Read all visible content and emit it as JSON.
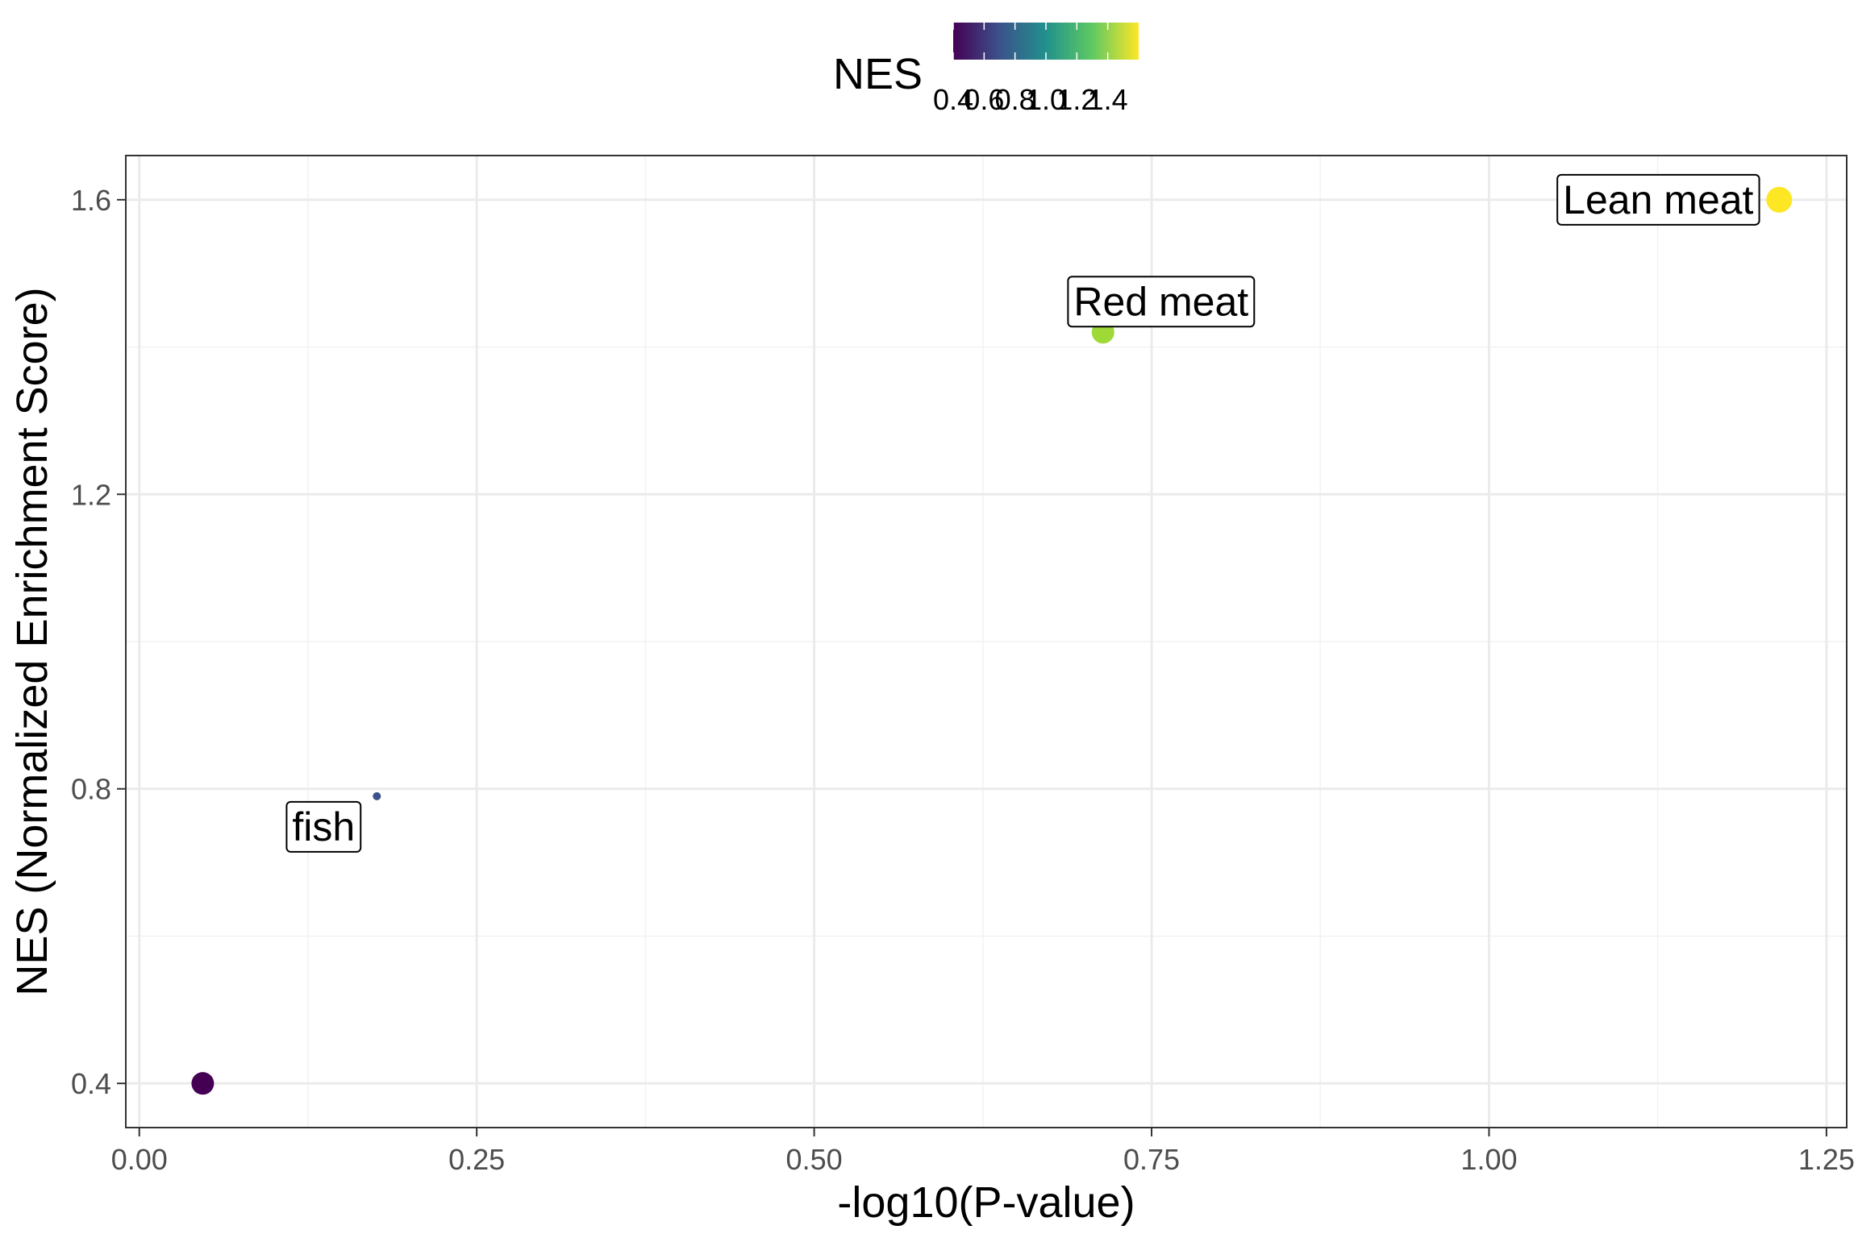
{
  "chart_data": {
    "type": "scatter",
    "xlabel": "-log10(P-value)",
    "ylabel": "NES (Normalized Enrichment Score)",
    "xlim": [
      -0.01,
      1.265
    ],
    "ylim": [
      0.34,
      1.66
    ],
    "x_ticks": [
      0.0,
      0.25,
      0.5,
      0.75,
      1.0,
      1.25
    ],
    "x_tick_labels": [
      "0.00",
      "0.25",
      "0.50",
      "0.75",
      "1.00",
      "1.25"
    ],
    "y_ticks": [
      0.4,
      0.8,
      1.2,
      1.6
    ],
    "y_tick_labels": [
      "0.4",
      "0.8",
      "1.2",
      "1.6"
    ],
    "grid": true,
    "points": [
      {
        "x": 0.047,
        "y": 0.4,
        "color": "#440154",
        "size": 14,
        "label": ""
      },
      {
        "x": 0.176,
        "y": 0.79,
        "color": "#3b528b",
        "size": 5,
        "label": "fish"
      },
      {
        "x": 0.714,
        "y": 1.42,
        "color": "#9fd938",
        "size": 14,
        "label": "Red meat"
      },
      {
        "x": 1.215,
        "y": 1.6,
        "color": "#fde725",
        "size": 16,
        "label": "Lean meat"
      }
    ],
    "legend": {
      "title": "NES",
      "position": "top",
      "range": [
        0.4,
        1.6
      ],
      "ticks": [
        0.4,
        0.6,
        0.8,
        1.0,
        1.2,
        1.4
      ],
      "tick_labels": [
        "0.4",
        "0.6",
        "0.8",
        "1.0",
        "1.2",
        "1.4"
      ],
      "colors": [
        "#440154",
        "#3b528b",
        "#21918c",
        "#5ec962",
        "#fde725"
      ]
    }
  }
}
